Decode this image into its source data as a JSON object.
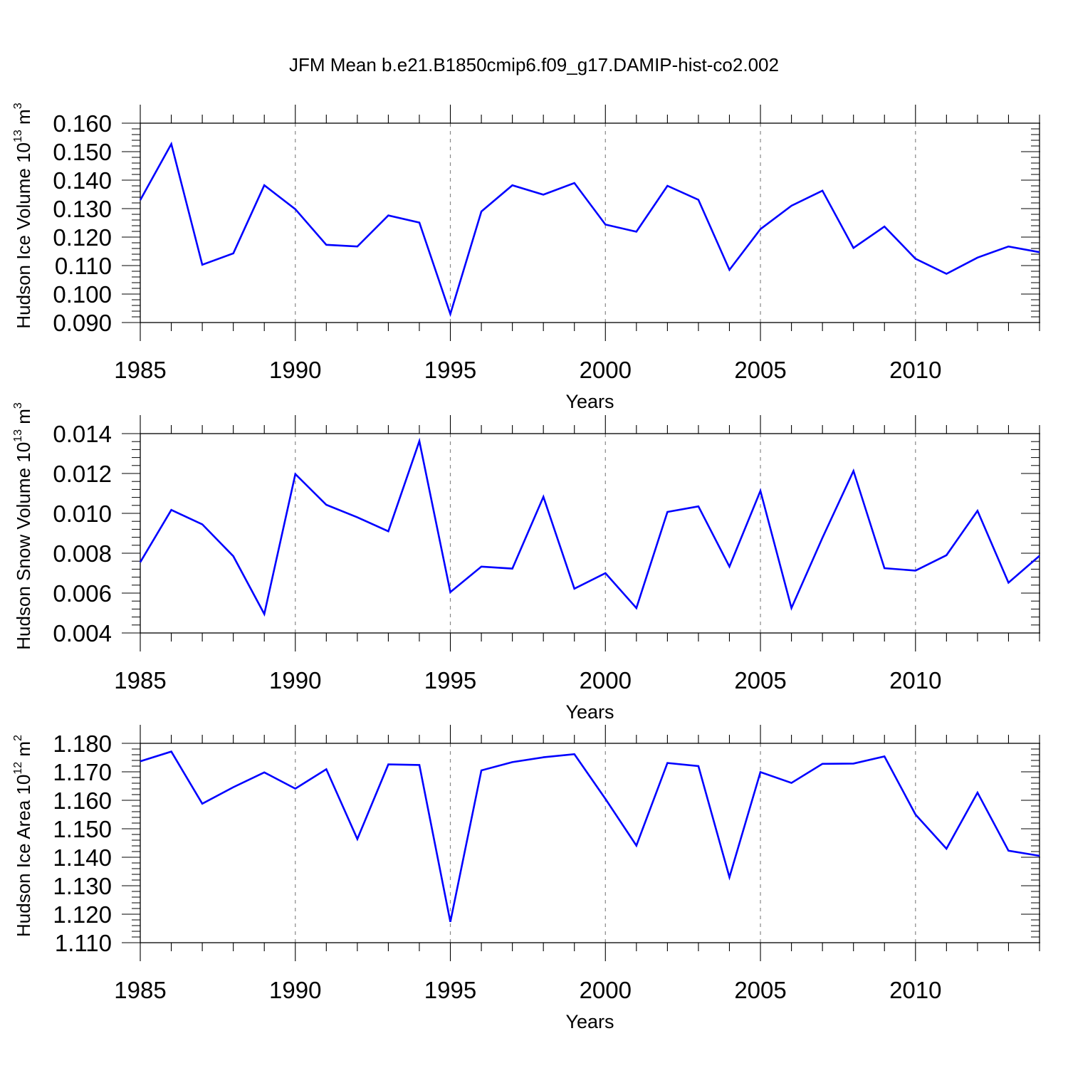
{
  "title": "JFM Mean b.e21.B1850cmip6.f09_g17.DAMIP-hist-co2.002",
  "line_color": "#0000ff",
  "grid_color": "#888888",
  "chart_data": [
    {
      "type": "line",
      "ylabel": "Hudson Ice Volume",
      "units": {
        "base": "10",
        "exp": "13",
        "unit": "m",
        "unit_exp": "3"
      },
      "xlabel": "Years",
      "xlim": [
        1985,
        2014
      ],
      "ylim": [
        0.09,
        0.16
      ],
      "yticks": [
        "0.090",
        "0.100",
        "0.110",
        "0.120",
        "0.130",
        "0.140",
        "0.150",
        "0.160"
      ],
      "xticks": [
        "1985",
        "1990",
        "1995",
        "2000",
        "2005",
        "2010"
      ],
      "series": [
        {
          "name": "Hudson Ice Volume",
          "x": [
            1985,
            1986,
            1987,
            1988,
            1989,
            1990,
            1991,
            1992,
            1993,
            1994,
            1995,
            1996,
            1997,
            1998,
            1999,
            2000,
            2001,
            2002,
            2003,
            2004,
            2005,
            2006,
            2007,
            2008,
            2009,
            2010,
            2011,
            2012,
            2013,
            2014
          ],
          "values": [
            0.133,
            0.1527,
            0.1103,
            0.1143,
            0.1382,
            0.1298,
            0.1173,
            0.1167,
            0.1276,
            0.1251,
            0.093,
            0.129,
            0.1382,
            0.1349,
            0.139,
            0.1244,
            0.1219,
            0.138,
            0.1331,
            0.1085,
            0.1228,
            0.131,
            0.1363,
            0.1162,
            0.1237,
            0.1124,
            0.1071,
            0.1128,
            0.1167,
            0.1147
          ]
        }
      ]
    },
    {
      "type": "line",
      "ylabel": "Hudson Snow Volume",
      "units": {
        "base": "10",
        "exp": "13",
        "unit": "m",
        "unit_exp": "3"
      },
      "xlabel": "Years",
      "xlim": [
        1985,
        2014
      ],
      "ylim": [
        0.004,
        0.014
      ],
      "yticks": [
        "0.004",
        "0.006",
        "0.008",
        "0.010",
        "0.012",
        "0.014"
      ],
      "xticks": [
        "1985",
        "1990",
        "1995",
        "2000",
        "2005",
        "2010"
      ],
      "series": [
        {
          "name": "Hudson Snow Volume",
          "x": [
            1985,
            1986,
            1987,
            1988,
            1989,
            1990,
            1991,
            1992,
            1993,
            1994,
            1995,
            1996,
            1997,
            1998,
            1999,
            2000,
            2001,
            2002,
            2003,
            2004,
            2005,
            2006,
            2007,
            2008,
            2009,
            2010,
            2011,
            2012,
            2013,
            2014
          ],
          "values": [
            0.00755,
            0.01017,
            0.00945,
            0.00785,
            0.00495,
            0.01197,
            0.01043,
            0.0098,
            0.0091,
            0.01362,
            0.00605,
            0.00733,
            0.00723,
            0.01083,
            0.00622,
            0.007,
            0.00525,
            0.01007,
            0.01035,
            0.00733,
            0.01113,
            0.00525,
            0.00877,
            0.01213,
            0.00725,
            0.00713,
            0.0079,
            0.01013,
            0.00652,
            0.00787
          ]
        }
      ]
    },
    {
      "type": "line",
      "ylabel": "Hudson Ice Area",
      "units": {
        "base": "10",
        "exp": "12",
        "unit": "m",
        "unit_exp": "2"
      },
      "xlabel": "Years",
      "xlim": [
        1985,
        2014
      ],
      "ylim": [
        1.11,
        1.18
      ],
      "yticks": [
        "1.110",
        "1.120",
        "1.130",
        "1.140",
        "1.150",
        "1.160",
        "1.170",
        "1.180"
      ],
      "xticks": [
        "1985",
        "1990",
        "1995",
        "2000",
        "2005",
        "2010"
      ],
      "series": [
        {
          "name": "Hudson Ice Area",
          "x": [
            1985,
            1986,
            1987,
            1988,
            1989,
            1990,
            1991,
            1992,
            1993,
            1994,
            1995,
            1996,
            1997,
            1998,
            1999,
            2000,
            2001,
            2002,
            2003,
            2004,
            2005,
            2006,
            2007,
            2008,
            2009,
            2010,
            2011,
            2012,
            2013,
            2014
          ],
          "values": [
            1.1737,
            1.1771,
            1.1588,
            1.1646,
            1.1698,
            1.1641,
            1.1709,
            1.1464,
            1.1726,
            1.1724,
            1.1173,
            1.1705,
            1.1734,
            1.1751,
            1.1762,
            1.1605,
            1.1441,
            1.1731,
            1.172,
            1.133,
            1.1699,
            1.1661,
            1.1728,
            1.1729,
            1.1754,
            1.155,
            1.143,
            1.1627,
            1.1423,
            1.1405
          ]
        }
      ]
    }
  ]
}
